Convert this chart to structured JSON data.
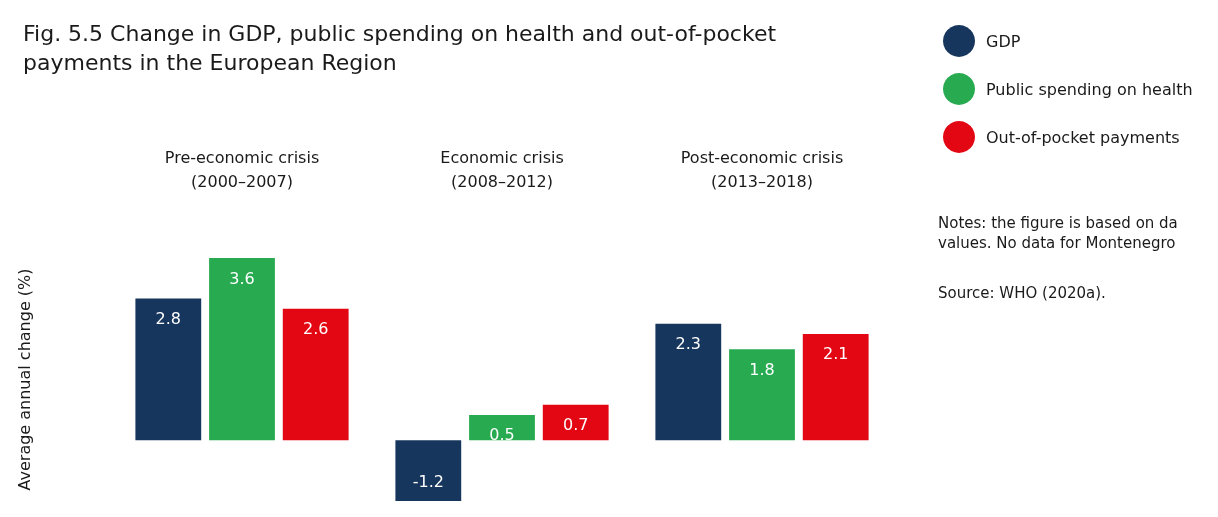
{
  "chart_data": {
    "type": "bar",
    "title": "Fig. 5.5 Change in GDP, public spending on health and out-of-pocket\npayments in the European Region",
    "categories": [
      "Pre-economic crisis\n(2000–2007)",
      "Economic crisis\n(2008–2012)",
      "Post-economic crisis\n(2013–2018)"
    ],
    "ylabel": "Average annual change (%)",
    "series": [
      {
        "name": "GDP",
        "color": "#17365d",
        "values": [
          2.8,
          -1.2,
          2.3
        ]
      },
      {
        "name": "Public spending on health",
        "color": "#27aa50",
        "values": [
          3.6,
          0.5,
          1.8
        ]
      },
      {
        "name": "Out-of-pocket payments",
        "color": "#e30613",
        "values": [
          2.6,
          0.7,
          2.1
        ]
      }
    ],
    "data_labels": true,
    "grid": false,
    "legend": "top right",
    "annotations": [
      "Notes: the figure is based on da\nvalues. No data for Montenegro",
      "Source: WHO (2020a)."
    ]
  }
}
